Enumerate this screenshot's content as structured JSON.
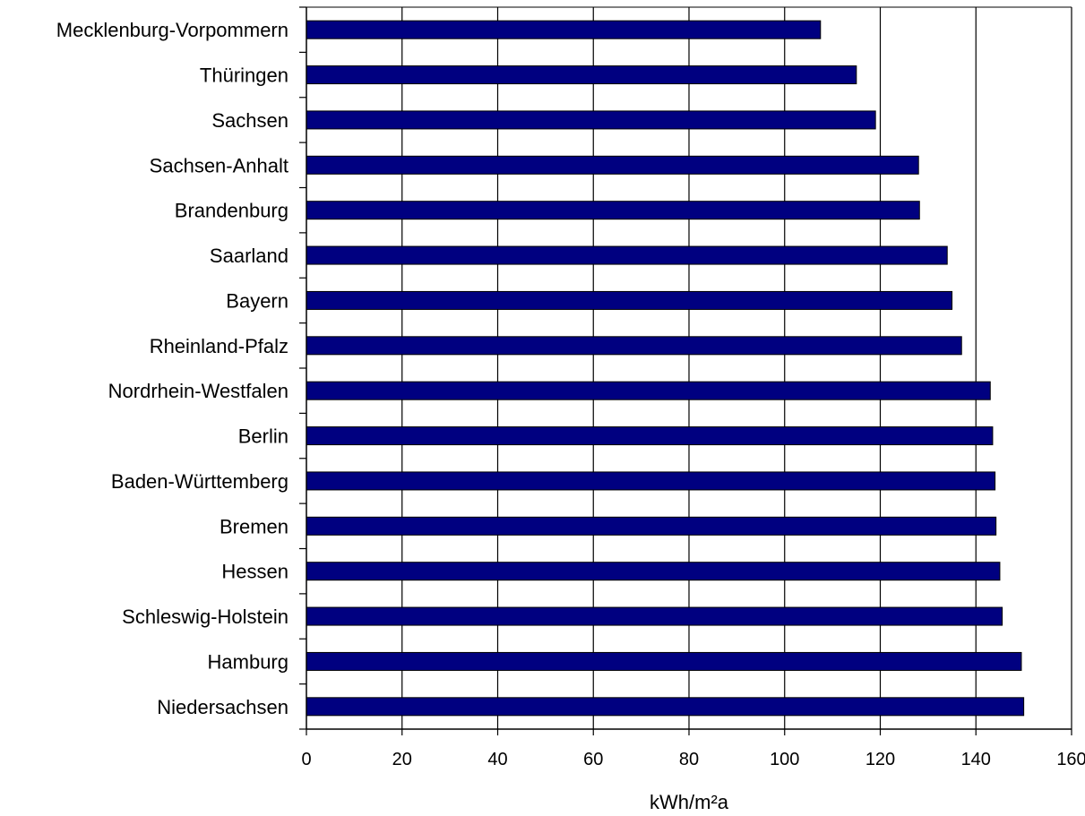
{
  "chart_data": {
    "type": "bar",
    "orientation": "horizontal",
    "categories": [
      "Mecklenburg-Vorpommern",
      "Thüringen",
      "Sachsen",
      "Sachsen-Anhalt",
      "Brandenburg",
      "Saarland",
      "Bayern",
      "Rheinland-Pfalz",
      "Nordrhein-Westfalen",
      "Berlin",
      "Baden-Württemberg",
      "Bremen",
      "Hessen",
      "Schleswig-Holstein",
      "Hamburg",
      "Niedersachsen"
    ],
    "values": [
      107.5,
      115,
      119,
      128,
      128.2,
      134,
      135,
      137,
      143,
      143.5,
      144,
      144.2,
      145,
      145.5,
      149.5,
      150
    ],
    "xlabel": "kWh/m²a",
    "ylabel": "",
    "title": "",
    "xlim": [
      0,
      160
    ],
    "xticks": [
      "0",
      "20",
      "40",
      "60",
      "80",
      "100",
      "120",
      "140",
      "160"
    ],
    "grid": "vertical",
    "legend": "none",
    "bar_color": "#000080",
    "bar_outline": "#000000"
  }
}
